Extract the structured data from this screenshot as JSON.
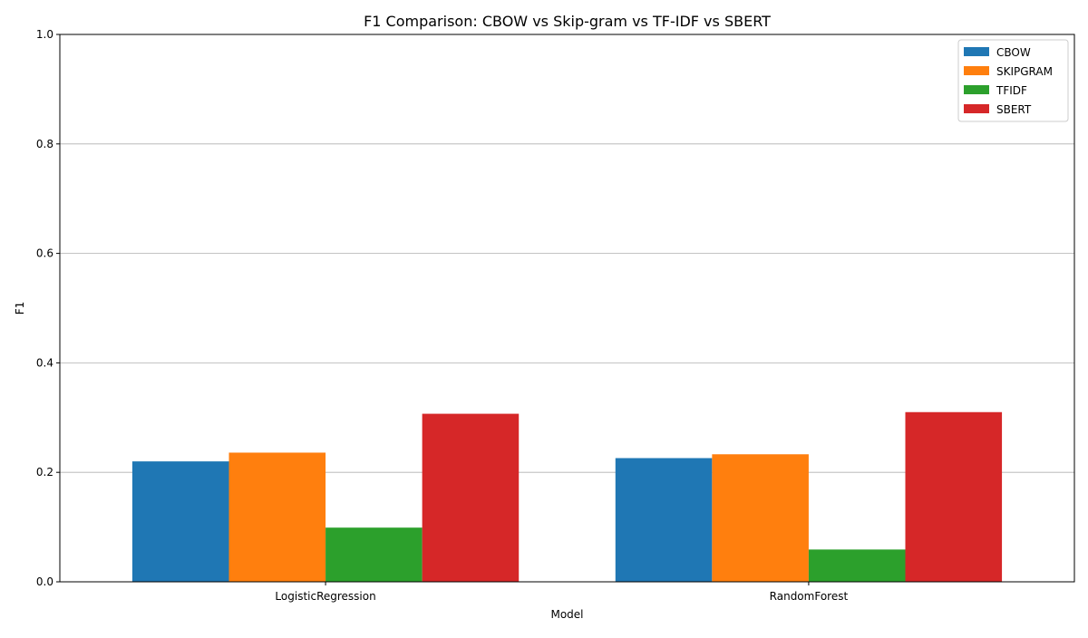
{
  "chart_data": {
    "type": "bar",
    "title": "F1 Comparison: CBOW vs Skip-gram vs TF-IDF vs SBERT",
    "xlabel": "Model",
    "ylabel": "F1",
    "categories": [
      "LogisticRegression",
      "RandomForest"
    ],
    "series": [
      {
        "name": "CBOW",
        "color": "#1f77b4",
        "values": [
          0.22,
          0.226
        ]
      },
      {
        "name": "SKIPGRAM",
        "color": "#ff7f0e",
        "values": [
          0.236,
          0.233
        ]
      },
      {
        "name": "TFIDF",
        "color": "#2ca02c",
        "values": [
          0.099,
          0.059
        ]
      },
      {
        "name": "SBERT",
        "color": "#d62728",
        "values": [
          0.307,
          0.31
        ]
      }
    ],
    "ylim": [
      0,
      1
    ],
    "yticks": [
      "0.0",
      "0.2",
      "0.4",
      "0.6",
      "0.8",
      "1.0"
    ],
    "grid": "y-major",
    "legend_position": "top-right"
  }
}
